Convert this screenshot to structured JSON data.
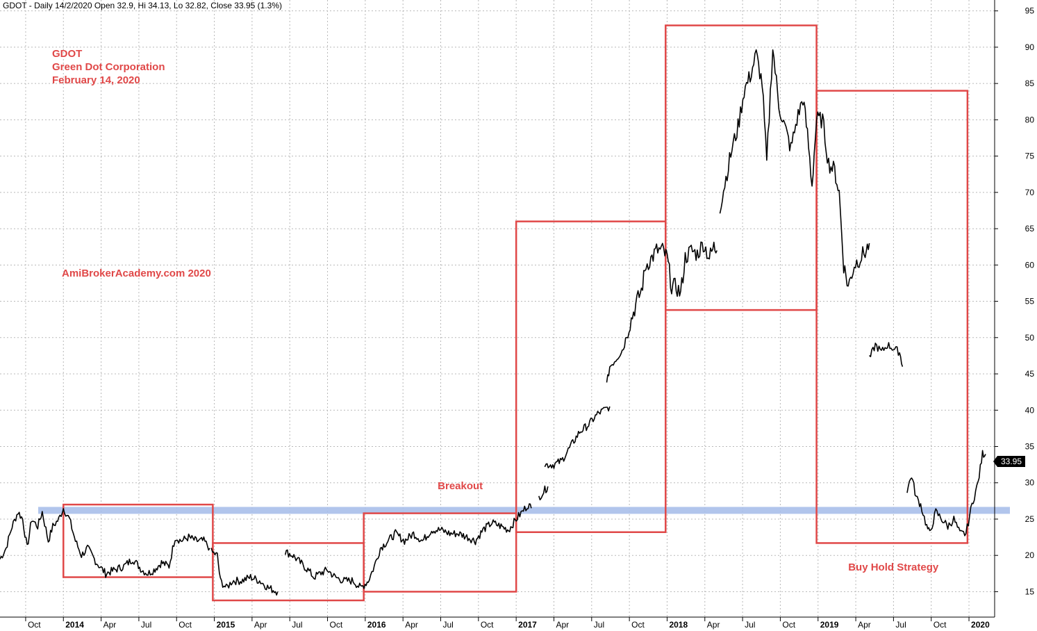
{
  "header": "GDOT - Daily 14/2/2020 Open 32.9, Hi 34.13, Lo 32.82, Close 33.95 (1.3%)",
  "title_lines": [
    "GDOT",
    "Green Dot Corporation",
    "February 14, 2020"
  ],
  "watermark": "AmiBrokerAcademy.com   2020",
  "price_label": "33.95",
  "colors": {
    "annotation": "#e04848",
    "support": "#a9bfea",
    "price": "#000000",
    "grid": "#b8b8b8"
  },
  "chart_data": {
    "type": "line",
    "series_name": "GDOT",
    "y_ticks": [
      15,
      20,
      25,
      30,
      35,
      40,
      45,
      50,
      55,
      60,
      65,
      70,
      75,
      80,
      85,
      90,
      95
    ],
    "ylim": [
      11.5,
      96.5
    ],
    "xlim": [
      2013.58,
      2020.17
    ],
    "x_ticks": [
      {
        "x": 2013.75,
        "label": "Oct",
        "major": false
      },
      {
        "x": 2014.0,
        "label": "2014",
        "major": true
      },
      {
        "x": 2014.25,
        "label": "Apr",
        "major": false
      },
      {
        "x": 2014.5,
        "label": "Jul",
        "major": false
      },
      {
        "x": 2014.75,
        "label": "Oct",
        "major": false
      },
      {
        "x": 2015.0,
        "label": "2015",
        "major": true
      },
      {
        "x": 2015.25,
        "label": "Apr",
        "major": false
      },
      {
        "x": 2015.5,
        "label": "Jul",
        "major": false
      },
      {
        "x": 2015.75,
        "label": "Oct",
        "major": false
      },
      {
        "x": 2016.0,
        "label": "2016",
        "major": true
      },
      {
        "x": 2016.25,
        "label": "Apr",
        "major": false
      },
      {
        "x": 2016.5,
        "label": "Jul",
        "major": false
      },
      {
        "x": 2016.75,
        "label": "Oct",
        "major": false
      },
      {
        "x": 2017.0,
        "label": "2017",
        "major": true
      },
      {
        "x": 2017.25,
        "label": "Apr",
        "major": false
      },
      {
        "x": 2017.5,
        "label": "Jul",
        "major": false
      },
      {
        "x": 2017.75,
        "label": "Oct",
        "major": false
      },
      {
        "x": 2018.0,
        "label": "2018",
        "major": true
      },
      {
        "x": 2018.25,
        "label": "Apr",
        "major": false
      },
      {
        "x": 2018.5,
        "label": "Jul",
        "major": false
      },
      {
        "x": 2018.75,
        "label": "Oct",
        "major": false
      },
      {
        "x": 2019.0,
        "label": "2019",
        "major": true
      },
      {
        "x": 2019.25,
        "label": "Apr",
        "major": false
      },
      {
        "x": 2019.5,
        "label": "Jul",
        "major": false
      },
      {
        "x": 2019.75,
        "label": "Oct",
        "major": false
      },
      {
        "x": 2020.0,
        "label": "2020",
        "major": true
      }
    ],
    "support_level": 26.2,
    "price_segments": [
      [
        [
          2013.58,
          19.5
        ],
        [
          2013.62,
          21
        ],
        [
          2013.66,
          24
        ],
        [
          2013.7,
          26
        ],
        [
          2013.73,
          25
        ],
        [
          2013.76,
          21
        ],
        [
          2013.79,
          25
        ],
        [
          2013.83,
          24
        ],
        [
          2013.86,
          26
        ],
        [
          2013.9,
          22
        ],
        [
          2013.93,
          24
        ],
        [
          2013.97,
          25
        ],
        [
          2014.0,
          26.5
        ],
        [
          2014.04,
          25
        ],
        [
          2014.08,
          22
        ],
        [
          2014.12,
          20
        ],
        [
          2014.16,
          21
        ],
        [
          2014.22,
          19
        ],
        [
          2014.28,
          17.5
        ],
        [
          2014.34,
          18
        ],
        [
          2014.4,
          18.5
        ],
        [
          2014.46,
          19.5
        ],
        [
          2014.52,
          18
        ],
        [
          2014.56,
          17.5
        ],
        [
          2014.6,
          18
        ],
        [
          2014.65,
          19
        ],
        [
          2014.7,
          18.5
        ],
        [
          2014.74,
          22.5
        ],
        [
          2014.78,
          22
        ],
        [
          2014.83,
          22.5
        ],
        [
          2014.88,
          22
        ],
        [
          2014.93,
          22
        ],
        [
          2014.97,
          21
        ]
      ],
      [
        [
          2014.98,
          20.5
        ],
        [
          2015.02,
          20
        ],
        [
          2015.04,
          16.5
        ],
        [
          2015.08,
          15.5
        ],
        [
          2015.12,
          16.5
        ],
        [
          2015.18,
          16.5
        ],
        [
          2015.24,
          17
        ],
        [
          2015.3,
          16.5
        ],
        [
          2015.36,
          15.5
        ],
        [
          2015.42,
          15
        ]
      ],
      [
        [
          2015.47,
          20.5
        ],
        [
          2015.52,
          20
        ],
        [
          2015.57,
          19
        ],
        [
          2015.62,
          18
        ],
        [
          2015.66,
          17
        ],
        [
          2015.7,
          17.5
        ],
        [
          2015.75,
          18
        ],
        [
          2015.8,
          17
        ],
        [
          2015.86,
          16.5
        ],
        [
          2015.92,
          16.5
        ],
        [
          2015.97,
          15.5
        ],
        [
          2016.02,
          16.5
        ],
        [
          2016.06,
          18.5
        ],
        [
          2016.1,
          21
        ],
        [
          2016.15,
          22
        ],
        [
          2016.2,
          23
        ],
        [
          2016.26,
          22
        ],
        [
          2016.32,
          23
        ],
        [
          2016.38,
          22
        ],
        [
          2016.44,
          23.5
        ],
        [
          2016.5,
          23.5
        ],
        [
          2016.56,
          23
        ],
        [
          2016.62,
          23
        ],
        [
          2016.68,
          22.5
        ],
        [
          2016.73,
          22
        ],
        [
          2016.78,
          23.5
        ],
        [
          2016.84,
          24.5
        ],
        [
          2016.9,
          24
        ],
        [
          2016.95,
          23.5
        ],
        [
          2017.0,
          25
        ],
        [
          2017.04,
          26
        ],
        [
          2017.08,
          27
        ],
        [
          2017.1,
          26.5
        ]
      ],
      [
        [
          2017.15,
          28
        ],
        [
          2017.19,
          29
        ],
        [
          2017.21,
          29.5
        ]
      ],
      [
        [
          2017.19,
          32.5
        ],
        [
          2017.25,
          32.5
        ],
        [
          2017.3,
          33
        ],
        [
          2017.36,
          35
        ],
        [
          2017.42,
          37
        ],
        [
          2017.48,
          38
        ],
        [
          2017.54,
          39.5
        ],
        [
          2017.58,
          40
        ],
        [
          2017.62,
          40.5
        ]
      ],
      [
        [
          2017.6,
          43.5
        ],
        [
          2017.62,
          46
        ],
        [
          2017.66,
          47
        ],
        [
          2017.71,
          48.5
        ],
        [
          2017.74,
          51
        ],
        [
          2017.77,
          53
        ],
        [
          2017.8,
          55
        ],
        [
          2017.83,
          56.5
        ],
        [
          2017.86,
          60
        ],
        [
          2017.9,
          61
        ],
        [
          2017.93,
          62
        ],
        [
          2017.97,
          62
        ],
        [
          2018.0,
          61
        ],
        [
          2018.03,
          57
        ],
        [
          2018.06,
          57
        ],
        [
          2018.09,
          56
        ],
        [
          2018.12,
          61
        ],
        [
          2018.16,
          62
        ],
        [
          2018.2,
          61.5
        ],
        [
          2018.24,
          63
        ],
        [
          2018.28,
          61
        ],
        [
          2018.31,
          62.5
        ],
        [
          2018.33,
          62
        ]
      ],
      [
        [
          2018.35,
          68
        ],
        [
          2018.39,
          72
        ],
        [
          2018.43,
          76
        ],
        [
          2018.47,
          79
        ],
        [
          2018.51,
          84
        ],
        [
          2018.55,
          86
        ],
        [
          2018.59,
          89
        ],
        [
          2018.63,
          85
        ],
        [
          2018.66,
          74
        ],
        [
          2018.7,
          90
        ],
        [
          2018.74,
          82
        ],
        [
          2018.78,
          79
        ],
        [
          2018.82,
          76
        ],
        [
          2018.86,
          80
        ],
        [
          2018.9,
          83
        ],
        [
          2018.93,
          78
        ],
        [
          2018.96,
          71
        ],
        [
          2018.99,
          80
        ],
        [
          2019.03,
          80
        ],
        [
          2019.07,
          74
        ],
        [
          2019.11,
          73
        ],
        [
          2019.14,
          70
        ],
        [
          2019.17,
          60
        ],
        [
          2019.2,
          57
        ],
        [
          2019.24,
          60
        ],
        [
          2019.28,
          61
        ],
        [
          2019.32,
          62
        ],
        [
          2019.34,
          63
        ]
      ],
      [
        [
          2019.34,
          47
        ],
        [
          2019.38,
          49
        ],
        [
          2019.42,
          48
        ],
        [
          2019.46,
          49
        ],
        [
          2019.5,
          48.5
        ],
        [
          2019.54,
          48
        ],
        [
          2019.56,
          46
        ]
      ],
      [
        [
          2019.59,
          29
        ],
        [
          2019.62,
          31
        ],
        [
          2019.65,
          28
        ],
        [
          2019.68,
          27
        ],
        [
          2019.72,
          24
        ],
        [
          2019.74,
          23
        ],
        [
          2019.78,
          26
        ],
        [
          2019.82,
          25
        ],
        [
          2019.86,
          24
        ],
        [
          2019.9,
          25
        ],
        [
          2019.94,
          23
        ],
        [
          2019.98,
          23
        ],
        [
          2020.02,
          27
        ],
        [
          2020.06,
          30
        ],
        [
          2020.09,
          34
        ],
        [
          2020.11,
          33.95
        ]
      ]
    ],
    "boxes": [
      {
        "x0": 2014.0,
        "x1": 2014.99,
        "y0": 17,
        "y1": 27
      },
      {
        "x0": 2014.99,
        "x1": 2015.99,
        "y0": 13.8,
        "y1": 21.7
      },
      {
        "x0": 2015.99,
        "x1": 2017.0,
        "y0": 15,
        "y1": 25.8
      },
      {
        "x0": 2017.0,
        "x1": 2017.99,
        "y0": 23.2,
        "y1": 66
      },
      {
        "x0": 2017.99,
        "x1": 2018.99,
        "y0": 53.8,
        "y1": 93
      },
      {
        "x0": 2018.99,
        "x1": 2019.99,
        "y0": 21.7,
        "y1": 84
      }
    ],
    "annotations": [
      {
        "text": "Breakout",
        "x": 2016.48,
        "y": 29.4
      },
      {
        "text": "Buy Hold Strategy",
        "x": 2019.2,
        "y": 18.2
      }
    ]
  }
}
